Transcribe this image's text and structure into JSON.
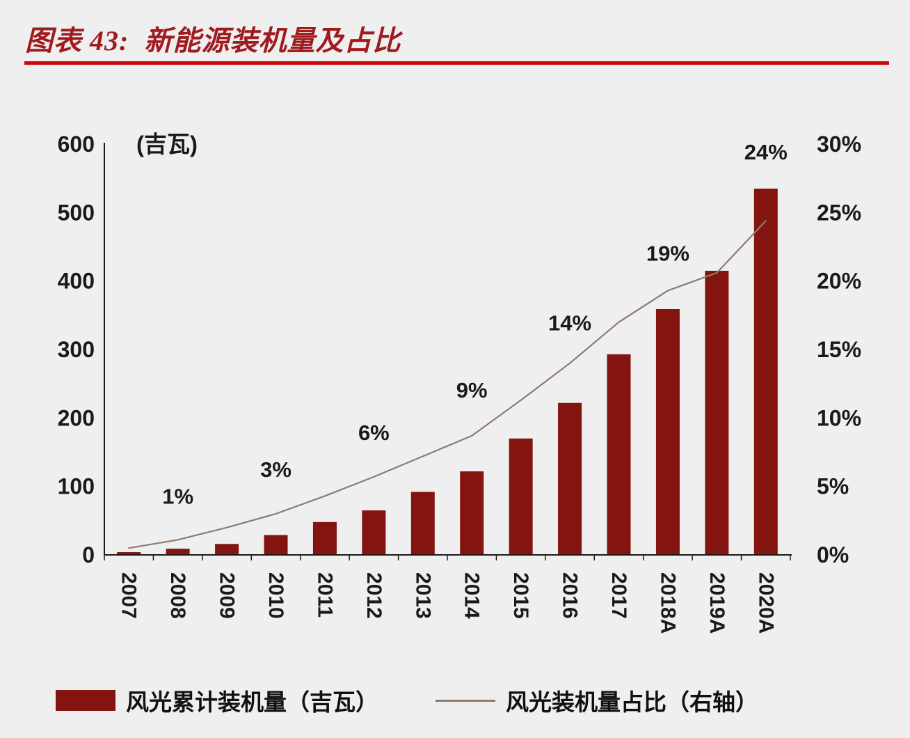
{
  "title": "图表 43:  新能源装机量及占比",
  "colors": {
    "background": "#f0eff0",
    "title": "#9e1b1e",
    "rule": "#c9080c",
    "bar": "#84140f",
    "line": "#8d7b6e",
    "text": "#1a1a1a"
  },
  "chart_data": {
    "type": "bar",
    "title": "新能源装机量及占比",
    "unit_label": "(吉瓦)",
    "categories": [
      "2007",
      "2008",
      "2009",
      "2010",
      "2011",
      "2012",
      "2013",
      "2014",
      "2015",
      "2016",
      "2017",
      "2018A",
      "2019A",
      "2020A"
    ],
    "series": [
      {
        "name": "风光累计装机量（吉瓦）",
        "type": "bar",
        "axis": "left",
        "values": [
          4,
          9,
          16,
          29,
          48,
          65,
          92,
          122,
          170,
          222,
          293,
          359,
          415,
          535
        ]
      },
      {
        "name": "风光装机量占比（右轴）",
        "type": "line",
        "axis": "right",
        "values": [
          0.5,
          1.1,
          2.0,
          3.0,
          4.3,
          5.7,
          7.2,
          8.7,
          11.3,
          14.0,
          17.0,
          19.3,
          20.6,
          24.4
        ]
      }
    ],
    "point_labels": [
      {
        "category": "2008",
        "text": "1%",
        "dy": -52
      },
      {
        "category": "2010",
        "text": "3%",
        "dy": -53
      },
      {
        "category": "2012",
        "text": "6%",
        "dy": -53
      },
      {
        "category": "2014",
        "text": "9%",
        "dy": -55
      },
      {
        "category": "2016",
        "text": "14%",
        "dy": -47
      },
      {
        "category": "2018A",
        "text": "19%",
        "dy": -43
      },
      {
        "category": "2020A",
        "text": "24%",
        "dy": -88
      }
    ],
    "left_axis": {
      "min": 0,
      "max": 600,
      "ticks": [
        "600",
        "500",
        "400",
        "300",
        "200",
        "100",
        "0"
      ]
    },
    "right_axis": {
      "min": 0,
      "max": 30,
      "ticks": [
        "30%",
        "25%",
        "20%",
        "15%",
        "10%",
        "5%",
        "0%"
      ]
    },
    "legend_position": "bottom",
    "grid": false
  }
}
